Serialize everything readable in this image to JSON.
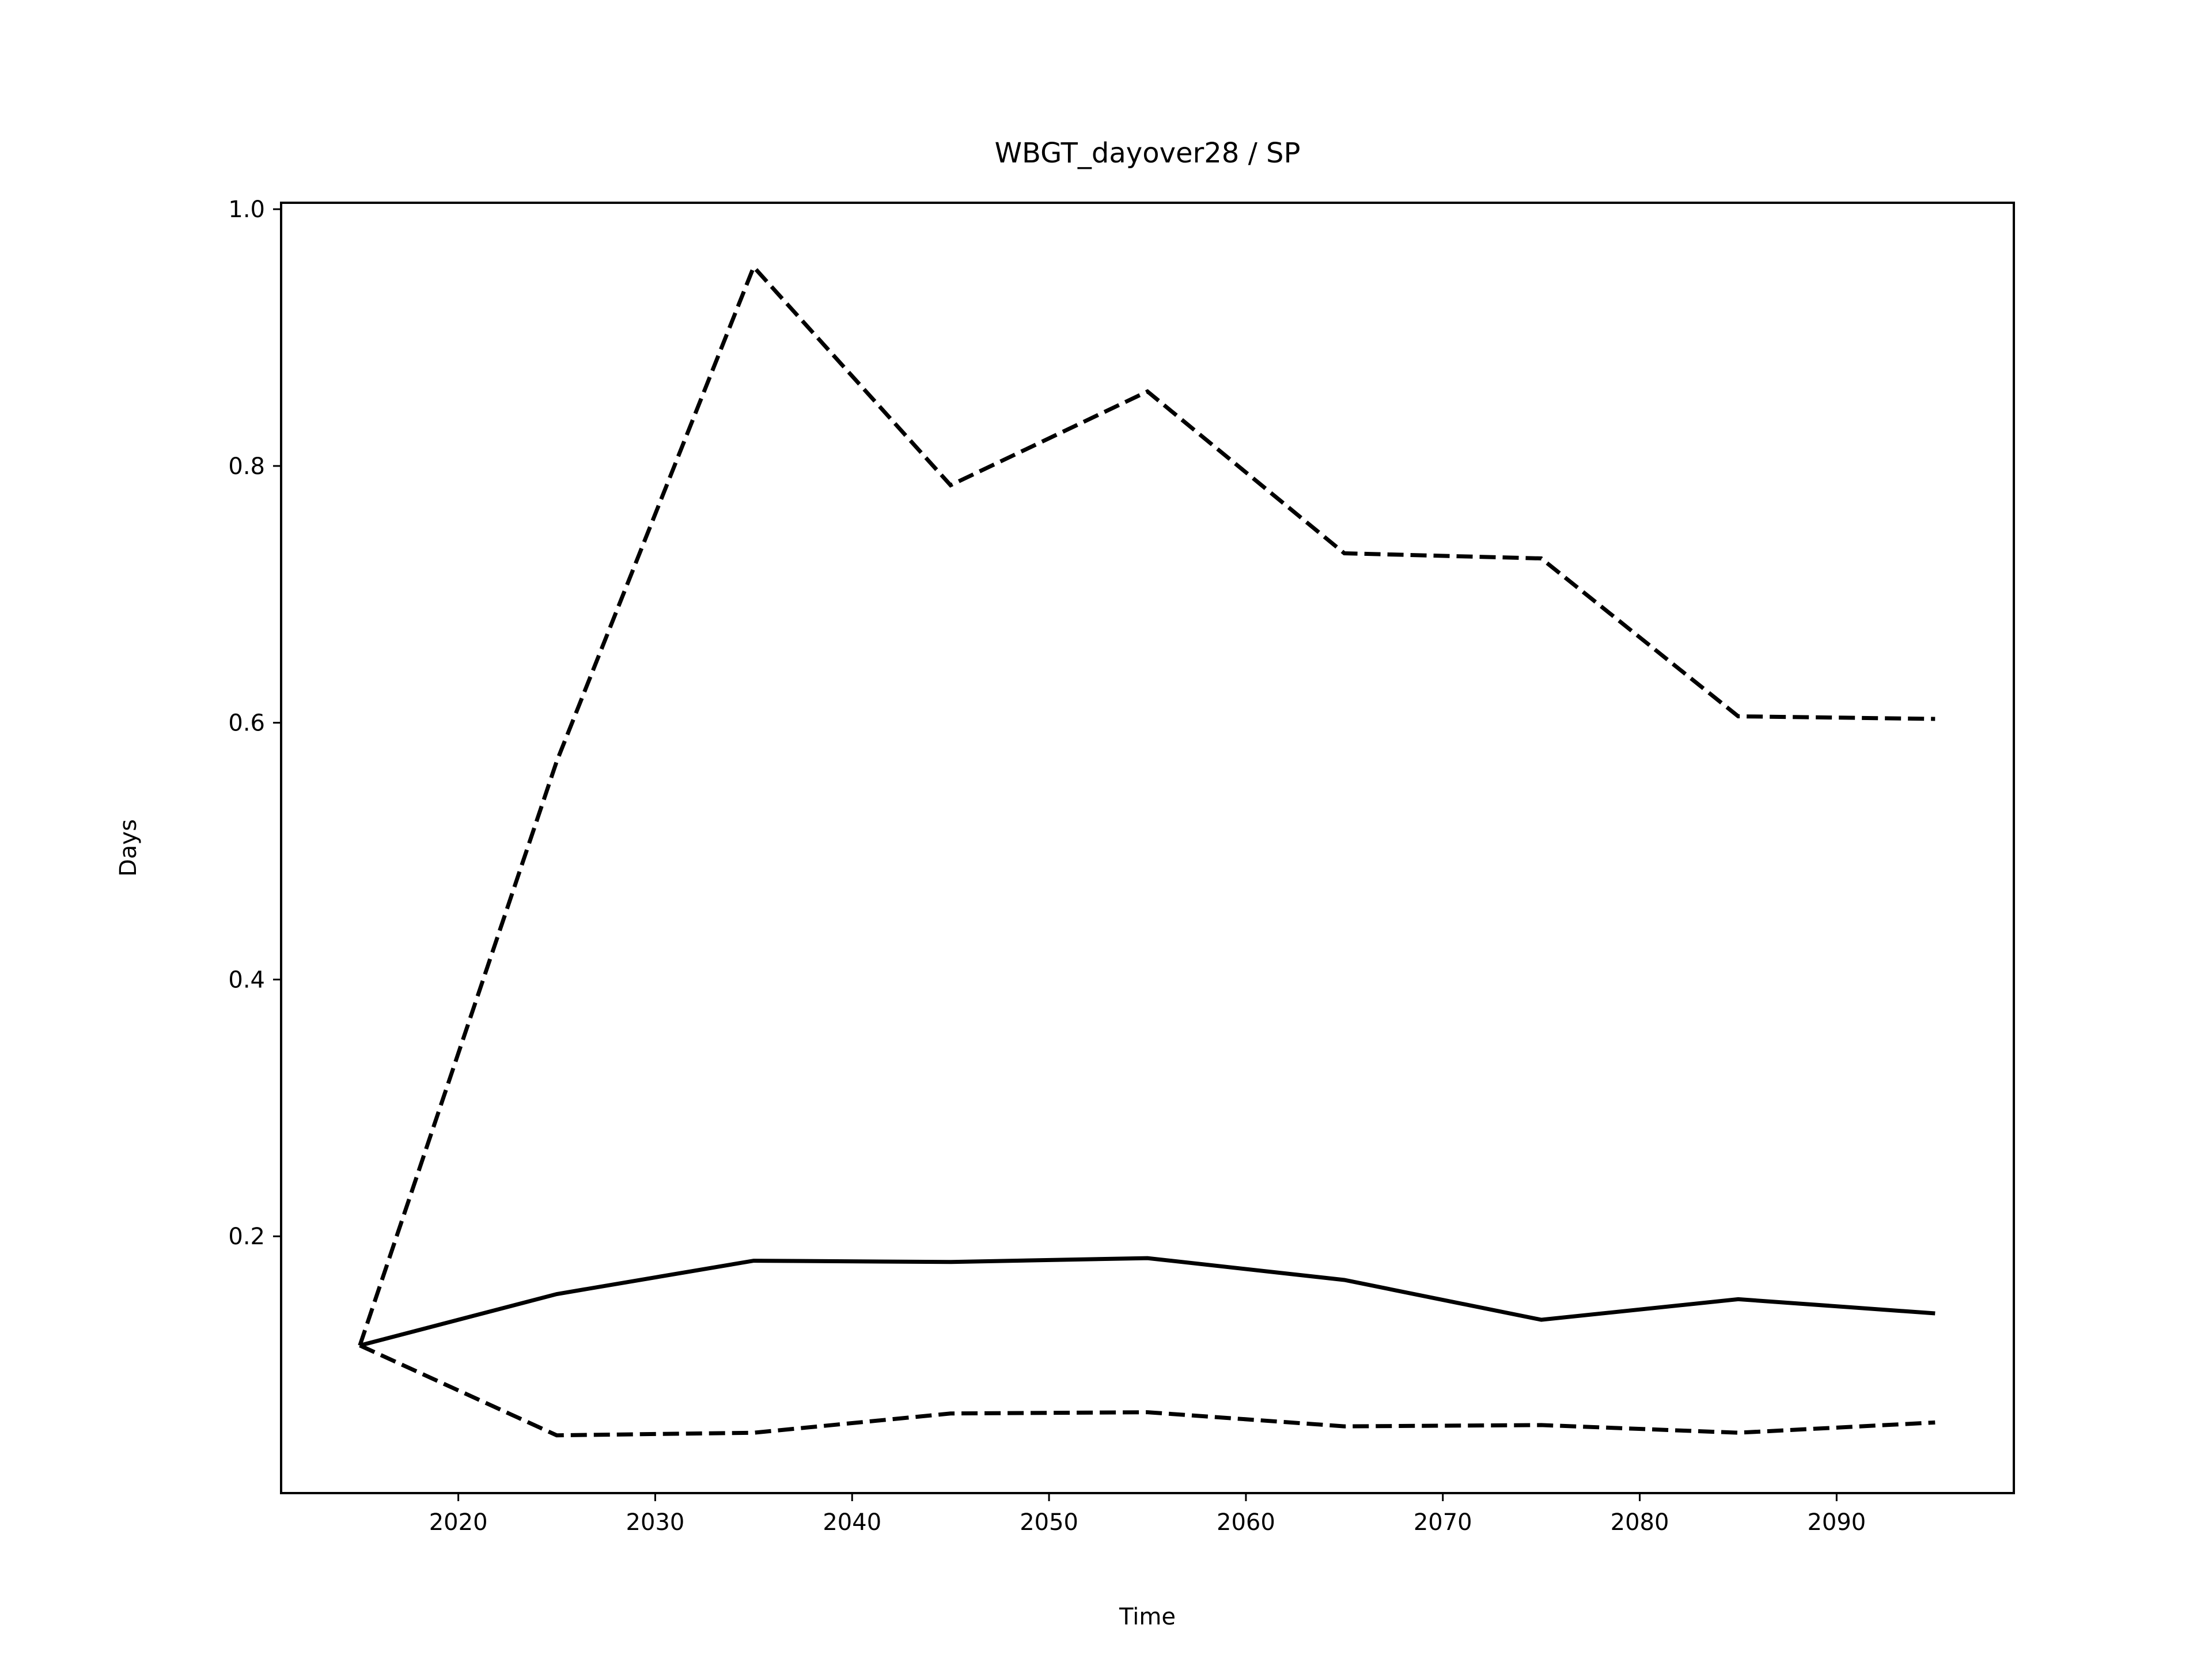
{
  "chart_data": {
    "type": "line",
    "title": "WBGT_dayover28 / SP",
    "xlabel": "Time",
    "ylabel": "Days",
    "xlim": [
      2011,
      2099
    ],
    "ylim": [
      0.0,
      1.005
    ],
    "xticks": [
      2020,
      2030,
      2040,
      2050,
      2060,
      2070,
      2080,
      2090
    ],
    "yticks": [
      0.2,
      0.4,
      0.6,
      0.8,
      1.0
    ],
    "xtick_labels": [
      "2020",
      "2030",
      "2040",
      "2050",
      "2060",
      "2070",
      "2080",
      "2090"
    ],
    "ytick_labels": [
      "0.2",
      "0.4",
      "0.6",
      "0.8",
      "1.0"
    ],
    "grid": false,
    "x": [
      2015,
      2025,
      2035,
      2045,
      2055,
      2065,
      2075,
      2085,
      2095
    ],
    "series": [
      {
        "values": [
          0.115,
          0.155,
          0.181,
          0.18,
          0.183,
          0.166,
          0.135,
          0.151,
          0.14
        ],
        "style": "solid",
        "color": "#000000"
      },
      {
        "values": [
          0.115,
          0.57,
          0.955,
          0.785,
          0.858,
          0.732,
          0.728,
          0.605,
          0.603
        ],
        "style": "dashed",
        "color": "#000000"
      },
      {
        "values": [
          0.115,
          0.045,
          0.047,
          0.062,
          0.063,
          0.052,
          0.053,
          0.047,
          0.055
        ],
        "style": "dashed",
        "color": "#000000"
      }
    ]
  }
}
